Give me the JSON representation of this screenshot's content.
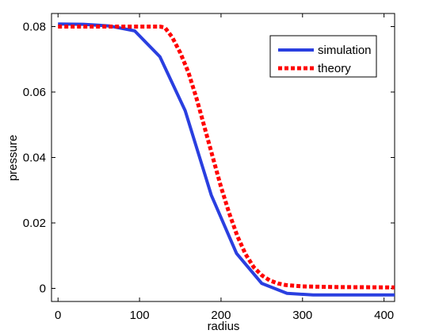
{
  "chart_data": {
    "type": "line",
    "xlabel": "radius",
    "ylabel": "pressure",
    "xlim": [
      -8,
      413
    ],
    "ylim": [
      -0.004,
      0.084
    ],
    "xticks": [
      0,
      100,
      200,
      300,
      400
    ],
    "xtick_labels": [
      "0",
      "100",
      "200",
      "300",
      "400"
    ],
    "yticks": [
      0,
      0.02,
      0.04,
      0.06,
      0.08
    ],
    "ytick_labels": [
      "0",
      "0.02",
      "0.04",
      "0.06",
      "0.08"
    ],
    "grid": false,
    "legend_position": "top-right",
    "series": [
      {
        "name": "simulation",
        "color": "#2a3fe0",
        "style": "solid",
        "x": [
          0,
          31,
          63,
          94,
          125,
          156,
          188,
          219,
          250,
          281,
          313,
          344,
          375,
          413
        ],
        "y": [
          0.0808,
          0.0807,
          0.0802,
          0.0787,
          0.0708,
          0.0543,
          0.0285,
          0.0107,
          0.0015,
          -0.0015,
          -0.002,
          -0.002,
          -0.002,
          -0.002
        ]
      },
      {
        "name": "theory",
        "color": "#ff0000",
        "style": "dotted",
        "x": [
          0,
          31,
          63,
          94,
          125,
          131,
          140,
          150,
          160,
          170,
          180,
          190,
          200,
          210,
          220,
          230,
          240,
          250,
          260,
          270,
          280,
          300,
          340,
          413
        ],
        "y": [
          0.08,
          0.08,
          0.08,
          0.08,
          0.08,
          0.0797,
          0.0768,
          0.072,
          0.066,
          0.058,
          0.049,
          0.04,
          0.031,
          0.023,
          0.016,
          0.0105,
          0.0065,
          0.004,
          0.0024,
          0.0015,
          0.001,
          0.0006,
          0.0004,
          0.0003
        ]
      }
    ]
  }
}
